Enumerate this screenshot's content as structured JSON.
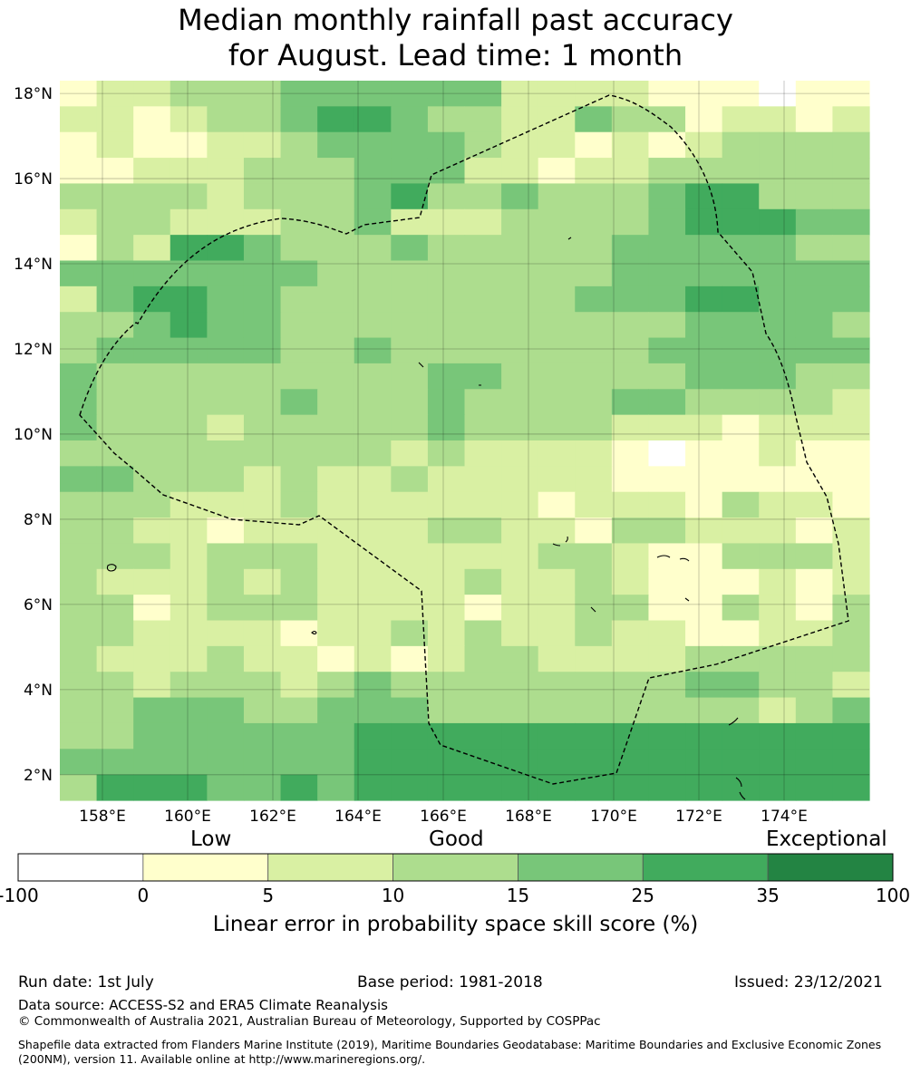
{
  "title": {
    "line1": "Median monthly rainfall past accuracy",
    "line2": "for August. Lead time: 1 month"
  },
  "map": {
    "lat_labels": [
      "18°N",
      "16°N",
      "14°N",
      "12°N",
      "10°N",
      "8°N",
      "6°N",
      "4°N",
      "2°N"
    ],
    "lon_labels": [
      "158°E",
      "160°E",
      "162°E",
      "164°E",
      "166°E",
      "168°E",
      "170°E",
      "172°E",
      "174°E"
    ],
    "lat_range": [
      1.4,
      18.3
    ],
    "lon_range": [
      157.0,
      176.0
    ],
    "cell_size_deg": 0.55,
    "grid_rows_north_to_south": [
      "1223334444442222111011",
      "2212334554332243312212",
      "1211223444432212123333",
      "1122233344422122333333",
      "3333233345334333455333",
      "2332223342223333455544",
      "1325543334333334444433",
      "4444444333333334444444",
      "2455443333333344455444",
      "3345443333333333344443",
      "3444443343333333444444",
      "4333333333443333344433",
      "4333334333433334433332",
      "4333233333433332221222",
      "3333333332322221011211",
      "4433323223222221111111",
      "3332223222222122213221",
      "3322122222332213322212",
      "3332333222222332113332",
      "3222323222232232111212",
      "3312333222212233113213",
      "3322221223232232211223",
      "3222322121233222233333",
      "3323332343333333344332",
      "3344433444333333333234",
      "3344444455555555555555",
      "4444444455555555555555",
      "3555445455555555555555"
    ]
  },
  "colorbar": {
    "category_labels": [
      "Low",
      "Good",
      "Exceptional"
    ],
    "tick_labels": [
      "-100",
      "0",
      "5",
      "10",
      "15",
      "25",
      "35",
      "100"
    ],
    "colors": [
      "#ffffff",
      "#ffffcc",
      "#d9f0a3",
      "#addd8e",
      "#78c679",
      "#41ab5d",
      "#238443"
    ],
    "title": "Linear error in probability space skill score (%)"
  },
  "footer": {
    "run_date": "Run date: 1st July",
    "base_period": "Base period: 1981-2018",
    "issued": "Issued: 23/12/2021",
    "data_source": "Data source: ACCESS-S2 and ERA5 Climate Reanalysis",
    "copyright": "© Commonwealth of Australia 2021, Australian Bureau of Meteorology, Supported by COSPPac",
    "shapefile": "Shapefile data extracted from Flanders Marine Institute (2019), Maritime Boundaries Geodatabase: Maritime Boundaries and Exclusive Economic Zones (200NM), version 11. Available online at http://www.marineregions.org/."
  }
}
